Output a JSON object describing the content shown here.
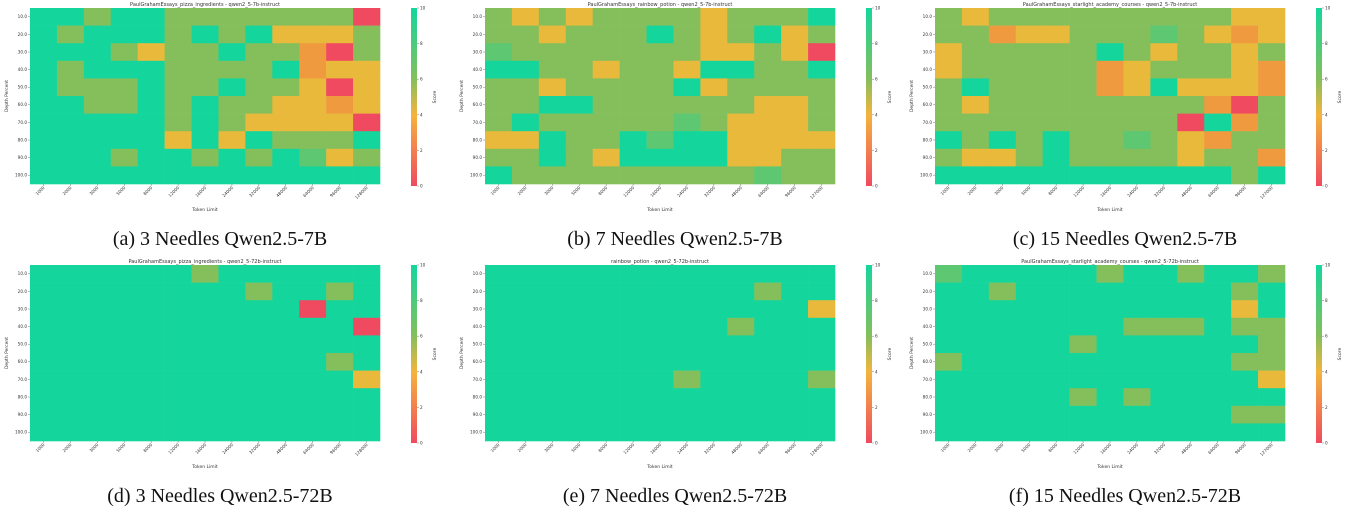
{
  "colors": {
    "score_0": "#ef4a60",
    "score_4": "#f4b43d",
    "score_6": "#84bf5c",
    "score_10": "#14d69c",
    "cell_green": "#14d69c",
    "cell_olive": "#84bf5c",
    "cell_yellow": "#e8b93a",
    "cell_orange": "#f09a40",
    "cell_red": "#ef4a60"
  },
  "chart_data": [
    {
      "type": "heatmap",
      "id": "a",
      "title": "PaulGrahamEssays_pizza_ingredients - qwen2_5-7b-instruct",
      "caption": "(a) 3 Needles Qwen2.5-7B",
      "xlabel": "Token Limit",
      "ylabel": "Depth Percent",
      "colorbar_label": "Score",
      "x": [
        "1000",
        "2000",
        "3000",
        "5000",
        "8000",
        "12000",
        "16000",
        "24000",
        "32000",
        "48000",
        "64000",
        "96000",
        "128000"
      ],
      "y": [
        "10.0",
        "20.0",
        "30.0",
        "40.0",
        "50.0",
        "60.0",
        "70.0",
        "80.0",
        "90.0",
        "100.0"
      ],
      "zlim": [
        0,
        10
      ],
      "colorbar_ticks": [
        "10",
        "8",
        "6",
        "4",
        "2",
        "0"
      ],
      "values": [
        [
          10,
          10,
          7,
          10,
          10,
          7,
          7,
          7,
          7,
          7,
          7,
          7,
          1
        ],
        [
          10,
          7,
          10,
          10,
          10,
          7,
          10,
          7,
          10,
          5,
          5,
          5,
          7
        ],
        [
          10,
          10,
          10,
          7,
          5,
          7,
          7,
          10,
          7,
          7,
          3,
          1,
          7
        ],
        [
          10,
          7,
          10,
          10,
          10,
          7,
          7,
          7,
          7,
          10,
          3,
          5,
          5
        ],
        [
          10,
          7,
          7,
          7,
          10,
          7,
          7,
          10,
          7,
          7,
          5,
          1,
          5
        ],
        [
          10,
          10,
          7,
          7,
          10,
          7,
          10,
          7,
          7,
          5,
          5,
          3,
          5
        ],
        [
          10,
          10,
          10,
          10,
          10,
          7,
          10,
          7,
          5,
          5,
          5,
          5,
          1
        ],
        [
          10,
          10,
          10,
          10,
          10,
          5,
          10,
          5,
          10,
          7,
          7,
          7,
          10
        ],
        [
          10,
          10,
          10,
          7,
          10,
          10,
          7,
          10,
          7,
          10,
          8,
          5,
          7
        ],
        [
          10,
          10,
          10,
          10,
          10,
          10,
          10,
          10,
          10,
          10,
          10,
          10,
          10
        ]
      ]
    },
    {
      "type": "heatmap",
      "id": "b",
      "title": "PaulGrahamEssays_rainbow_potion - qwen2_5-7b-instruct",
      "caption": "(b) 7 Needles Qwen2.5-7B",
      "xlabel": "Token Limit",
      "ylabel": "Depth Percent",
      "colorbar_label": "Score",
      "x": [
        "1000",
        "2000",
        "3000",
        "5000",
        "8000",
        "12000",
        "16000",
        "24000",
        "32000",
        "48000",
        "64000",
        "96000",
        "127000"
      ],
      "y": [
        "10.0",
        "20.0",
        "30.0",
        "40.0",
        "50.0",
        "60.0",
        "70.0",
        "80.0",
        "90.0",
        "100.0"
      ],
      "zlim": [
        0,
        10
      ],
      "colorbar_ticks": [
        "10",
        "8",
        "6",
        "4",
        "2",
        "0"
      ],
      "values": [
        [
          7,
          5,
          7,
          5,
          7,
          7,
          7,
          7,
          5,
          7,
          7,
          7,
          10
        ],
        [
          7,
          7,
          5,
          7,
          7,
          7,
          10,
          7,
          5,
          7,
          10,
          5,
          7
        ],
        [
          8,
          7,
          7,
          7,
          7,
          7,
          7,
          7,
          5,
          5,
          7,
          5,
          1
        ],
        [
          10,
          10,
          7,
          7,
          5,
          7,
          7,
          5,
          10,
          10,
          7,
          7,
          10
        ],
        [
          7,
          7,
          5,
          7,
          7,
          7,
          6,
          10,
          5,
          7,
          7,
          7,
          7
        ],
        [
          7,
          7,
          10,
          10,
          7,
          7,
          7,
          7,
          7,
          7,
          5,
          5,
          7
        ],
        [
          7,
          10,
          7,
          7,
          7,
          6,
          7,
          8,
          7,
          5,
          5,
          5,
          7
        ],
        [
          5,
          5,
          10,
          7,
          7,
          10,
          8,
          10,
          10,
          5,
          5,
          5,
          5
        ],
        [
          7,
          7,
          10,
          7,
          5,
          10,
          10,
          10,
          10,
          5,
          5,
          7,
          6
        ],
        [
          10,
          7,
          7,
          7,
          7,
          7,
          7,
          7,
          7,
          7,
          8,
          7,
          7
        ]
      ]
    },
    {
      "type": "heatmap",
      "id": "c",
      "title": "PaulGrahamEssays_starlight_academy_courses - qwen2_5-7b-instruct",
      "caption": "(c) 15 Needles Qwen2.5-7B",
      "xlabel": "Token Limit",
      "ylabel": "Depth Percent",
      "colorbar_label": "Score",
      "x": [
        "1000",
        "2000",
        "3000",
        "5000",
        "8000",
        "12000",
        "16000",
        "24000",
        "32000",
        "48000",
        "64000",
        "96000",
        "127000"
      ],
      "y": [
        "10.0",
        "20.0",
        "30.0",
        "40.0",
        "50.0",
        "60.0",
        "70.0",
        "80.0",
        "90.0",
        "100.0"
      ],
      "zlim": [
        0,
        10
      ],
      "colorbar_ticks": [
        "10",
        "8",
        "6",
        "4",
        "2",
        "0"
      ],
      "values": [
        [
          7,
          5,
          7,
          7,
          7,
          7,
          7,
          7,
          7,
          7,
          7,
          5,
          5
        ],
        [
          7,
          7,
          3,
          5,
          5,
          7,
          7,
          7,
          8,
          7,
          5,
          3,
          5
        ],
        [
          5,
          7,
          7,
          7,
          7,
          7,
          10,
          7,
          5,
          7,
          7,
          5,
          7
        ],
        [
          5,
          7,
          7,
          7,
          7,
          7,
          3,
          5,
          7,
          7,
          7,
          5,
          3
        ],
        [
          7,
          10,
          7,
          7,
          7,
          7,
          3,
          5,
          10,
          5,
          5,
          5,
          3
        ],
        [
          7,
          5,
          7,
          7,
          7,
          7,
          7,
          7,
          7,
          7,
          3,
          1,
          7
        ],
        [
          7,
          7,
          7,
          7,
          7,
          7,
          7,
          7,
          7,
          1,
          10,
          3,
          7
        ],
        [
          10,
          7,
          10,
          7,
          10,
          7,
          7,
          8,
          7,
          5,
          3,
          7,
          7
        ],
        [
          7,
          5,
          5,
          7,
          10,
          7,
          7,
          7,
          7,
          5,
          7,
          7,
          3
        ],
        [
          10,
          10,
          10,
          10,
          10,
          10,
          10,
          10,
          10,
          10,
          10,
          7,
          10
        ]
      ]
    },
    {
      "type": "heatmap",
      "id": "d",
      "title": "PaulGrahamEssays_pizza_ingredients - qwen2_5-72b-instruct",
      "caption": "(d) 3 Needles Qwen2.5-72B",
      "xlabel": "Token Limit",
      "ylabel": "Depth Percent",
      "colorbar_label": "Score",
      "x": [
        "1000",
        "2000",
        "3000",
        "5000",
        "8000",
        "12000",
        "16000",
        "24000",
        "32000",
        "48000",
        "64000",
        "96000",
        "128000"
      ],
      "y": [
        "10.0",
        "20.0",
        "30.0",
        "40.0",
        "50.0",
        "60.0",
        "70.0",
        "80.0",
        "90.0",
        "100.0"
      ],
      "zlim": [
        0,
        10
      ],
      "colorbar_ticks": [
        "10",
        "8",
        "6",
        "4",
        "2",
        "0"
      ],
      "values": [
        [
          10,
          10,
          10,
          10,
          10,
          10,
          7,
          10,
          10,
          10,
          10,
          10,
          10
        ],
        [
          10,
          10,
          10,
          10,
          10,
          10,
          10,
          10,
          7,
          10,
          10,
          7,
          10
        ],
        [
          10,
          10,
          10,
          10,
          10,
          10,
          10,
          10,
          10,
          10,
          1,
          10,
          10
        ],
        [
          10,
          10,
          10,
          10,
          10,
          10,
          10,
          10,
          10,
          10,
          10,
          10,
          1
        ],
        [
          10,
          10,
          10,
          10,
          10,
          10,
          10,
          10,
          10,
          10,
          10,
          10,
          10
        ],
        [
          10,
          10,
          10,
          10,
          10,
          10,
          10,
          10,
          10,
          10,
          10,
          7,
          10
        ],
        [
          10,
          10,
          10,
          10,
          10,
          10,
          10,
          10,
          10,
          10,
          10,
          10,
          5
        ],
        [
          10,
          10,
          10,
          10,
          10,
          10,
          10,
          10,
          10,
          10,
          10,
          10,
          10
        ],
        [
          10,
          10,
          10,
          10,
          10,
          10,
          10,
          10,
          10,
          10,
          10,
          10,
          10
        ],
        [
          10,
          10,
          10,
          10,
          10,
          10,
          10,
          10,
          10,
          10,
          10,
          10,
          10
        ]
      ]
    },
    {
      "type": "heatmap",
      "id": "e",
      "title": "rainbow_potion - qwen2_5-72b-instruct",
      "caption": "(e) 7 Needles Qwen2.5-72B",
      "xlabel": "Token Limit",
      "ylabel": "Depth Percent",
      "colorbar_label": "Score",
      "x": [
        "1000",
        "2000",
        "3000",
        "5000",
        "8000",
        "12000",
        "16000",
        "24000",
        "32000",
        "48000",
        "64000",
        "96000",
        "128000"
      ],
      "y": [
        "10.0",
        "20.0",
        "30.0",
        "40.0",
        "50.0",
        "60.0",
        "70.0",
        "80.0",
        "90.0",
        "100.0"
      ],
      "zlim": [
        0,
        10
      ],
      "colorbar_ticks": [
        "10",
        "8",
        "6",
        "4",
        "2",
        "0"
      ],
      "values": [
        [
          10,
          10,
          10,
          10,
          10,
          10,
          10,
          10,
          10,
          10,
          10,
          10,
          10
        ],
        [
          10,
          10,
          10,
          10,
          10,
          10,
          10,
          10,
          10,
          10,
          7,
          10,
          10
        ],
        [
          10,
          10,
          10,
          10,
          10,
          10,
          10,
          10,
          10,
          10,
          10,
          10,
          5
        ],
        [
          10,
          10,
          10,
          10,
          10,
          10,
          10,
          10,
          10,
          7,
          10,
          10,
          10
        ],
        [
          10,
          10,
          10,
          10,
          10,
          10,
          10,
          10,
          10,
          10,
          10,
          10,
          10
        ],
        [
          10,
          10,
          10,
          10,
          10,
          10,
          10,
          10,
          10,
          10,
          10,
          10,
          10
        ],
        [
          10,
          10,
          10,
          10,
          10,
          10,
          10,
          7,
          10,
          10,
          10,
          10,
          7
        ],
        [
          10,
          10,
          10,
          10,
          10,
          10,
          10,
          10,
          10,
          10,
          10,
          10,
          10
        ],
        [
          10,
          10,
          10,
          10,
          10,
          10,
          10,
          10,
          10,
          10,
          10,
          10,
          10
        ],
        [
          10,
          10,
          10,
          10,
          10,
          10,
          10,
          10,
          10,
          10,
          10,
          10,
          10
        ]
      ]
    },
    {
      "type": "heatmap",
      "id": "f",
      "title": "PaulGrahamEssays_starlight_academy_courses - qwen2_5-72b-instruct",
      "caption": "(f) 15 Needles Qwen2.5-72B",
      "xlabel": "Token Limit",
      "ylabel": "Depth Percent",
      "colorbar_label": "Score",
      "x": [
        "1000",
        "2000",
        "3000",
        "5000",
        "8000",
        "12000",
        "16000",
        "24000",
        "32000",
        "48000",
        "64000",
        "96000",
        "127000"
      ],
      "y": [
        "10.0",
        "20.0",
        "30.0",
        "40.0",
        "50.0",
        "60.0",
        "70.0",
        "80.0",
        "90.0",
        "100.0"
      ],
      "zlim": [
        0,
        10
      ],
      "colorbar_ticks": [
        "10",
        "8",
        "6",
        "4",
        "2",
        "0"
      ],
      "values": [
        [
          8,
          10,
          10,
          10,
          10,
          10,
          7,
          10,
          10,
          7,
          10,
          10,
          7
        ],
        [
          10,
          10,
          7,
          10,
          10,
          10,
          10,
          10,
          10,
          10,
          10,
          7,
          10
        ],
        [
          10,
          10,
          10,
          10,
          10,
          10,
          10,
          10,
          10,
          10,
          10,
          5,
          10
        ],
        [
          10,
          10,
          10,
          10,
          10,
          10,
          10,
          7,
          7,
          7,
          10,
          7,
          7
        ],
        [
          10,
          10,
          10,
          10,
          10,
          7,
          10,
          10,
          10,
          10,
          10,
          10,
          7
        ],
        [
          7,
          10,
          10,
          10,
          10,
          10,
          10,
          10,
          10,
          10,
          10,
          7,
          7
        ],
        [
          10,
          10,
          10,
          10,
          10,
          10,
          10,
          10,
          10,
          10,
          10,
          10,
          5
        ],
        [
          10,
          10,
          10,
          10,
          10,
          7,
          10,
          7,
          10,
          10,
          10,
          10,
          10
        ],
        [
          10,
          10,
          10,
          10,
          10,
          10,
          10,
          10,
          10,
          10,
          10,
          7,
          7
        ],
        [
          10,
          10,
          10,
          10,
          10,
          10,
          10,
          10,
          10,
          10,
          10,
          10,
          10
        ]
      ]
    }
  ]
}
